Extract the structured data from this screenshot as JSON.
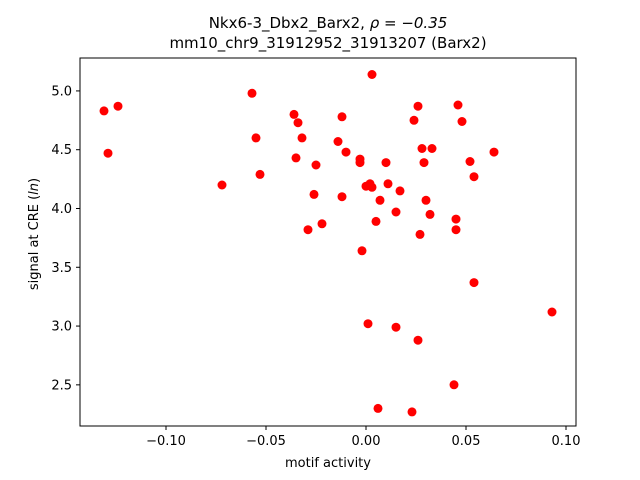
{
  "chart_data": {
    "type": "scatter",
    "title_line1_prefix": "Nkx6-3_Dbx2_Barx2, ",
    "title_line1_rho": "ρ = −0.35",
    "title_line2": "mm10_chr9_31912952_31913207 (Barx2)",
    "xlabel": "motif activity",
    "ylabel": "signal at CRE (ln)",
    "ylabel_prefix": "signal at CRE (",
    "ylabel_italic": "ln",
    "ylabel_suffix": ")",
    "xlim": [
      -0.143,
      0.105
    ],
    "ylim": [
      2.15,
      5.28
    ],
    "xticks": [
      -0.1,
      -0.05,
      0.0,
      0.05,
      0.1
    ],
    "xtick_labels": [
      "−0.10",
      "−0.05",
      "0.00",
      "0.05",
      "0.10"
    ],
    "yticks": [
      2.5,
      3.0,
      3.5,
      4.0,
      4.5,
      5.0
    ],
    "ytick_labels": [
      "2.5",
      "3.0",
      "3.5",
      "4.0",
      "4.5",
      "5.0"
    ],
    "grid": false,
    "marker_color": "#ff0000",
    "points": [
      {
        "x": -0.131,
        "y": 4.83
      },
      {
        "x": -0.124,
        "y": 4.87
      },
      {
        "x": -0.129,
        "y": 4.47
      },
      {
        "x": -0.072,
        "y": 4.2
      },
      {
        "x": -0.057,
        "y": 4.98
      },
      {
        "x": -0.055,
        "y": 4.6
      },
      {
        "x": -0.053,
        "y": 4.29
      },
      {
        "x": -0.036,
        "y": 4.8
      },
      {
        "x": -0.034,
        "y": 4.73
      },
      {
        "x": -0.032,
        "y": 4.6
      },
      {
        "x": -0.035,
        "y": 4.43
      },
      {
        "x": -0.025,
        "y": 4.37
      },
      {
        "x": -0.026,
        "y": 4.12
      },
      {
        "x": -0.029,
        "y": 3.82
      },
      {
        "x": -0.022,
        "y": 3.87
      },
      {
        "x": -0.012,
        "y": 4.78
      },
      {
        "x": -0.014,
        "y": 4.57
      },
      {
        "x": -0.01,
        "y": 4.48
      },
      {
        "x": -0.012,
        "y": 4.1
      },
      {
        "x": -0.003,
        "y": 4.42
      },
      {
        "x": -0.003,
        "y": 4.39
      },
      {
        "x": 0.0,
        "y": 4.19
      },
      {
        "x": 0.002,
        "y": 4.21
      },
      {
        "x": 0.003,
        "y": 4.18
      },
      {
        "x": 0.003,
        "y": 5.14
      },
      {
        "x": -0.002,
        "y": 3.64
      },
      {
        "x": 0.005,
        "y": 3.89
      },
      {
        "x": 0.007,
        "y": 4.07
      },
      {
        "x": 0.01,
        "y": 4.39
      },
      {
        "x": 0.011,
        "y": 4.21
      },
      {
        "x": 0.015,
        "y": 3.97
      },
      {
        "x": 0.017,
        "y": 4.15
      },
      {
        "x": 0.001,
        "y": 3.02
      },
      {
        "x": 0.015,
        "y": 2.99
      },
      {
        "x": 0.006,
        "y": 2.3
      },
      {
        "x": 0.023,
        "y": 2.27
      },
      {
        "x": 0.024,
        "y": 4.75
      },
      {
        "x": 0.026,
        "y": 4.87
      },
      {
        "x": 0.028,
        "y": 4.51
      },
      {
        "x": 0.029,
        "y": 4.39
      },
      {
        "x": 0.03,
        "y": 4.07
      },
      {
        "x": 0.033,
        "y": 4.51
      },
      {
        "x": 0.032,
        "y": 3.95
      },
      {
        "x": 0.027,
        "y": 3.78
      },
      {
        "x": 0.026,
        "y": 2.88
      },
      {
        "x": 0.046,
        "y": 4.88
      },
      {
        "x": 0.048,
        "y": 4.74
      },
      {
        "x": 0.052,
        "y": 4.4
      },
      {
        "x": 0.054,
        "y": 4.27
      },
      {
        "x": 0.045,
        "y": 3.91
      },
      {
        "x": 0.045,
        "y": 3.82
      },
      {
        "x": 0.054,
        "y": 3.37
      },
      {
        "x": 0.044,
        "y": 2.5
      },
      {
        "x": 0.064,
        "y": 4.48
      },
      {
        "x": 0.093,
        "y": 3.12
      }
    ]
  }
}
